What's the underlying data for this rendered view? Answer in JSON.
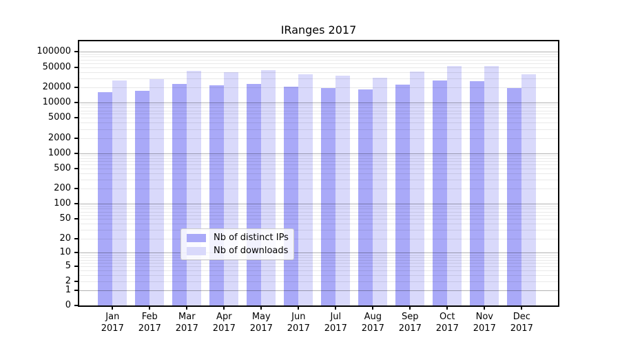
{
  "chart_data": {
    "type": "bar",
    "title": "IRanges 2017",
    "year": "2017",
    "categories": [
      "Jan",
      "Feb",
      "Mar",
      "Apr",
      "May",
      "Jun",
      "Jul",
      "Aug",
      "Sep",
      "Oct",
      "Nov",
      "Dec"
    ],
    "series": [
      {
        "name": "Nb of distinct IPs",
        "color": "#a9a9f8",
        "values": [
          16100,
          16800,
          23500,
          21700,
          23500,
          20800,
          19100,
          18200,
          22400,
          27200,
          26700,
          19500
        ]
      },
      {
        "name": "Nb of downloads",
        "color": "#d9d9fb",
        "values": [
          26900,
          28700,
          41800,
          39600,
          43900,
          35700,
          33600,
          31100,
          40900,
          52000,
          52000,
          36500
        ]
      }
    ],
    "y_ticks": [
      100000,
      50000,
      20000,
      10000,
      5000,
      2000,
      1000,
      500,
      200,
      100,
      50,
      20,
      10,
      5,
      2,
      1,
      0
    ],
    "y_scale": "log10(1+x)",
    "ylim": [
      0,
      160000
    ],
    "xlabel": "",
    "ylabel": "",
    "grid": "horizontal, minor light / major dark at powers of 10, drawn over bars",
    "legend_position": "bottom-center"
  }
}
